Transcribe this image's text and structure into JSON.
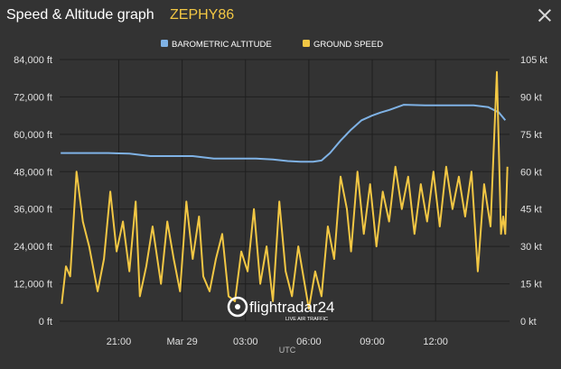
{
  "header": {
    "title": "Speed & Altitude graph",
    "callsign": "ZEPHY86"
  },
  "icons": {
    "close": "close-icon",
    "logo": "flightradar24-logo"
  },
  "colors": {
    "background": "#333333",
    "altitude": "#7fb2e5",
    "speed": "#f2c744",
    "grid": "#222222",
    "text": "#e0e0e0"
  },
  "logo": {
    "brand": "flightradar24",
    "tagline": "LIVE AIR TRAFFIC"
  },
  "chart_data": {
    "type": "line",
    "xlabel": "UTC",
    "x_tick_labels": [
      "21:00",
      "Mar 29",
      "03:00",
      "06:00",
      "09:00",
      "12:00"
    ],
    "x_ticks_hours": [
      21,
      24,
      27,
      30,
      33,
      36
    ],
    "x_range_hours": [
      18.2,
      39.5
    ],
    "y_left": {
      "unit": "ft",
      "range": [
        0,
        84000
      ],
      "tick_labels": [
        "0 ft",
        "12,000 ft",
        "24,000 ft",
        "36,000 ft",
        "48,000 ft",
        "60,000 ft",
        "72,000 ft",
        "84,000 ft"
      ]
    },
    "y_right": {
      "unit": "kt",
      "range": [
        0,
        105
      ],
      "tick_labels": [
        "0 kt",
        "15 kt",
        "30 kt",
        "45 kt",
        "60 kt",
        "75 kt",
        "90 kt",
        "105 kt"
      ]
    },
    "grid": true,
    "legend_position": "top-center",
    "series": [
      {
        "name": "BAROMETRIC ALTITUDE",
        "axis": "left",
        "x": [
          18.25,
          19.5,
          20.5,
          21.5,
          22.5,
          23.5,
          24.5,
          25.5,
          26.5,
          27.5,
          28.3,
          29.0,
          29.6,
          30.2,
          30.6,
          31.0,
          31.5,
          32.0,
          32.5,
          33.0,
          33.4,
          33.8,
          34.5,
          35.5,
          36.5,
          37.2,
          37.8,
          38.5,
          39.0,
          39.3
        ],
        "y": [
          54000,
          54000,
          54000,
          53800,
          53000,
          53000,
          53000,
          52200,
          52200,
          52200,
          51900,
          51400,
          51200,
          51200,
          51600,
          54000,
          58000,
          61500,
          64500,
          66000,
          67000,
          67800,
          69500,
          69300,
          69300,
          69300,
          69300,
          68700,
          67000,
          64500
        ]
      },
      {
        "name": "GROUND SPEED",
        "axis": "right",
        "x": [
          18.3,
          18.5,
          18.7,
          19.0,
          19.3,
          19.6,
          20.0,
          20.3,
          20.6,
          20.9,
          21.2,
          21.5,
          21.8,
          22.0,
          22.3,
          22.6,
          23.0,
          23.3,
          23.6,
          23.9,
          24.2,
          24.5,
          24.8,
          25.0,
          25.3,
          25.6,
          25.9,
          26.2,
          26.5,
          26.8,
          27.1,
          27.4,
          27.7,
          28.0,
          28.3,
          28.6,
          28.9,
          29.2,
          29.5,
          29.8,
          30.0,
          30.3,
          30.6,
          30.9,
          31.2,
          31.5,
          31.8,
          32.0,
          32.3,
          32.6,
          32.9,
          33.2,
          33.5,
          33.8,
          34.1,
          34.4,
          34.7,
          35.0,
          35.3,
          35.6,
          35.9,
          36.2,
          36.5,
          36.8,
          37.1,
          37.4,
          37.7,
          38.0,
          38.3,
          38.6,
          38.9,
          39.1,
          39.2,
          39.3,
          39.4
        ],
        "y": [
          7,
          22,
          18,
          60,
          40,
          30,
          12,
          25,
          52,
          28,
          40,
          20,
          48,
          10,
          22,
          38,
          15,
          40,
          25,
          12,
          48,
          25,
          42,
          18,
          12,
          25,
          35,
          10,
          8,
          28,
          20,
          45,
          15,
          30,
          8,
          48,
          20,
          10,
          30,
          15,
          5,
          20,
          10,
          38,
          25,
          58,
          45,
          28,
          60,
          35,
          55,
          30,
          52,
          40,
          62,
          45,
          58,
          35,
          55,
          40,
          60,
          38,
          62,
          45,
          58,
          42,
          60,
          20,
          55,
          38,
          100,
          35,
          42,
          35,
          62
        ]
      }
    ]
  }
}
